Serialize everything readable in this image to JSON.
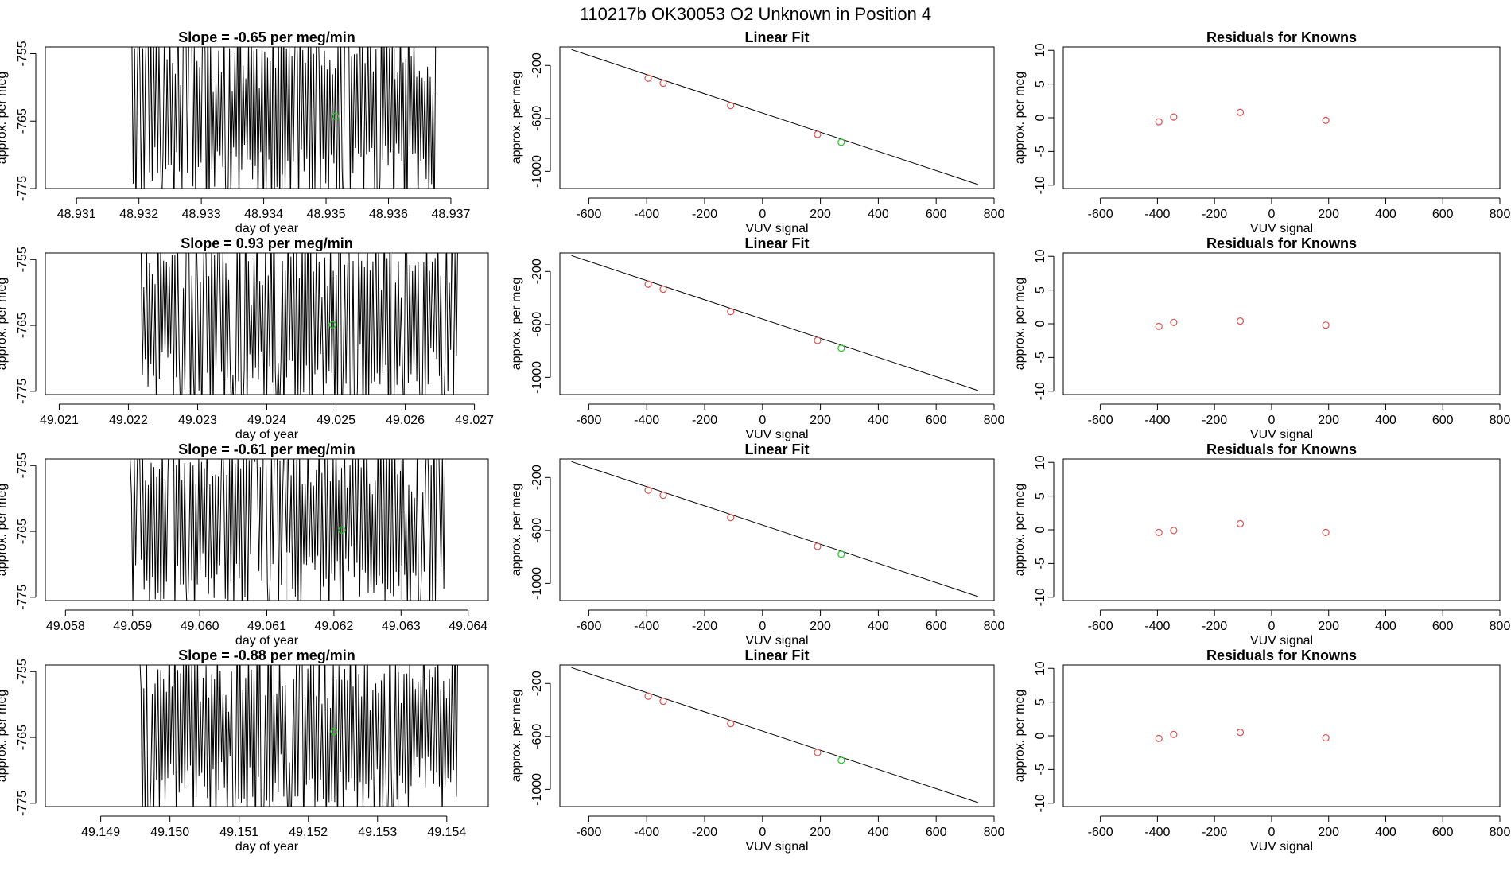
{
  "page_title": "110217b      OK30053    O2 Unknown in Position  4",
  "colors": {
    "series": "#000000",
    "known": "#d9534f",
    "unknown": "#22cc22",
    "marker_line": "#bbbbbb"
  },
  "chart_data": [
    {
      "row": 1,
      "type": "line",
      "title": "Slope =  -0.65  per meg/min",
      "xlabel": "day of year",
      "ylabel": "approx. per meg",
      "xlim": [
        48.9305,
        48.9376
      ],
      "ylim": [
        -775,
        -754
      ],
      "xticks": [
        "48.931",
        "48.932",
        "48.933",
        "48.934",
        "48.935",
        "48.936",
        "48.937"
      ],
      "yticks": [
        "-755",
        "-765",
        "-775"
      ],
      "vlines": [
        48.9343,
        48.9361
      ],
      "unknown_point": {
        "x": 48.93515,
        "y": -764.3
      },
      "x_start": 48.9318,
      "x_end": 48.9368,
      "seed": 11
    },
    {
      "row": 1,
      "type": "scatter",
      "title": "Linear Fit",
      "xlabel": "VUV signal",
      "ylabel": "approx. per meg",
      "xlim": [
        -700,
        800
      ],
      "ylim": [
        -1130,
        -60
      ],
      "xticks": [
        "-600",
        "-400",
        "-200",
        "0",
        "200",
        "400",
        "600",
        "800"
      ],
      "yticks": [
        "-200",
        "-600",
        "-1000"
      ],
      "line": {
        "x": [
          -660,
          745
        ],
        "y": [
          -80,
          -1100
        ]
      },
      "knowns": [
        {
          "x": -395,
          "y": -296
        },
        {
          "x": -343,
          "y": -334
        },
        {
          "x": -110,
          "y": -503
        },
        {
          "x": 190,
          "y": -721
        }
      ],
      "unknown": {
        "x": 272,
        "y": -780
      }
    },
    {
      "row": 1,
      "type": "scatter",
      "title": "Residuals for Knowns",
      "xlabel": "VUV signal",
      "ylabel": "approx. per meg",
      "xlim": [
        -730,
        800
      ],
      "ylim": [
        -10.5,
        10.5
      ],
      "xticks": [
        "-600",
        "-400",
        "-200",
        "0",
        "200",
        "400",
        "600",
        "800"
      ],
      "yticks": [
        "10",
        "5",
        "0",
        "-5",
        "-10"
      ],
      "points": [
        {
          "x": -395,
          "y": -0.6
        },
        {
          "x": -343,
          "y": 0.1
        },
        {
          "x": -110,
          "y": 0.8
        },
        {
          "x": 190,
          "y": -0.4
        }
      ]
    },
    {
      "row": 2,
      "type": "line",
      "title": "Slope =  0.93  per meg/min",
      "xlabel": "day of year",
      "ylabel": "approx. per meg",
      "xlim": [
        49.0208,
        49.0272
      ],
      "ylim": [
        -775.5,
        -754
      ],
      "xticks": [
        "49.021",
        "49.022",
        "49.023",
        "49.024",
        "49.025",
        "49.026",
        "49.027"
      ],
      "yticks": [
        "-755",
        "-765",
        "-775"
      ],
      "vlines": [
        49.0241,
        49.0258
      ],
      "unknown_point": {
        "x": 49.02495,
        "y": -764.9
      },
      "x_start": 49.0221,
      "x_end": 49.0268,
      "seed": 23
    },
    {
      "row": 2,
      "type": "scatter",
      "title": "Linear Fit",
      "xlabel": "VUV signal",
      "ylabel": "approx. per meg",
      "xlim": [
        -700,
        800
      ],
      "ylim": [
        -1130,
        -60
      ],
      "xticks": [
        "-600",
        "-400",
        "-200",
        "0",
        "200",
        "400",
        "600",
        "800"
      ],
      "yticks": [
        "-200",
        "-600",
        "-1000"
      ],
      "line": {
        "x": [
          -660,
          745
        ],
        "y": [
          -80,
          -1100
        ]
      },
      "knowns": [
        {
          "x": -395,
          "y": -296
        },
        {
          "x": -343,
          "y": -334
        },
        {
          "x": -110,
          "y": -503
        },
        {
          "x": 190,
          "y": -721
        }
      ],
      "unknown": {
        "x": 272,
        "y": -780
      }
    },
    {
      "row": 2,
      "type": "scatter",
      "title": "Residuals for Knowns",
      "xlabel": "VUV signal",
      "ylabel": "approx. per meg",
      "xlim": [
        -730,
        800
      ],
      "ylim": [
        -10.5,
        10.5
      ],
      "xticks": [
        "-600",
        "-400",
        "-200",
        "0",
        "200",
        "400",
        "600",
        "800"
      ],
      "yticks": [
        "10",
        "5",
        "0",
        "-5",
        "-10"
      ],
      "points": [
        {
          "x": -395,
          "y": -0.4
        },
        {
          "x": -343,
          "y": 0.2
        },
        {
          "x": -110,
          "y": 0.4
        },
        {
          "x": 190,
          "y": -0.2
        }
      ]
    },
    {
      "row": 3,
      "type": "line",
      "title": "Slope =  -0.61  per meg/min",
      "xlabel": "day of year",
      "ylabel": "approx. per meg",
      "xlim": [
        49.0577,
        49.0643
      ],
      "ylim": [
        -775.5,
        -754
      ],
      "xticks": [
        "49.058",
        "49.059",
        "49.060",
        "49.061",
        "49.062",
        "49.063",
        "49.064"
      ],
      "yticks": [
        "-755",
        "-765",
        "-775"
      ],
      "vlines": [
        49.0613,
        49.063
      ],
      "unknown_point": {
        "x": 49.06212,
        "y": -764.8
      },
      "x_start": 49.0589,
      "x_end": 49.0637,
      "seed": 37
    },
    {
      "row": 3,
      "type": "scatter",
      "title": "Linear Fit",
      "xlabel": "VUV signal",
      "ylabel": "approx. per meg",
      "xlim": [
        -700,
        800
      ],
      "ylim": [
        -1130,
        -60
      ],
      "xticks": [
        "-600",
        "-400",
        "-200",
        "0",
        "200",
        "400",
        "600",
        "800"
      ],
      "yticks": [
        "-200",
        "-600",
        "-1000"
      ],
      "line": {
        "x": [
          -660,
          745
        ],
        "y": [
          -80,
          -1100
        ]
      },
      "knowns": [
        {
          "x": -395,
          "y": -296
        },
        {
          "x": -343,
          "y": -334
        },
        {
          "x": -110,
          "y": -503
        },
        {
          "x": 190,
          "y": -721
        }
      ],
      "unknown": {
        "x": 272,
        "y": -780
      }
    },
    {
      "row": 3,
      "type": "scatter",
      "title": "Residuals for Knowns",
      "xlabel": "VUV signal",
      "ylabel": "approx. per meg",
      "xlim": [
        -730,
        800
      ],
      "ylim": [
        -10.5,
        10.5
      ],
      "xticks": [
        "-600",
        "-400",
        "-200",
        "0",
        "200",
        "400",
        "600",
        "800"
      ],
      "yticks": [
        "10",
        "5",
        "0",
        "-5",
        "-10"
      ],
      "points": [
        {
          "x": -395,
          "y": -0.4
        },
        {
          "x": -343,
          "y": -0.1
        },
        {
          "x": -110,
          "y": 0.9
        },
        {
          "x": 190,
          "y": -0.4
        }
      ]
    },
    {
      "row": 4,
      "type": "line",
      "title": "Slope =  -0.88  per meg/min",
      "xlabel": "day of year",
      "ylabel": "approx. per meg",
      "xlim": [
        49.1482,
        49.1546
      ],
      "ylim": [
        -775.5,
        -754
      ],
      "xticks": [
        "49.149",
        "49.150",
        "49.151",
        "49.152",
        "49.153",
        "49.154"
      ],
      "yticks": [
        "-755",
        "-765",
        "-775"
      ],
      "vlines": [
        49.1515,
        49.1533
      ],
      "unknown_point": {
        "x": 49.15237,
        "y": -764.1
      },
      "x_start": 49.1495,
      "x_end": 49.1542,
      "seed": 53
    },
    {
      "row": 4,
      "type": "scatter",
      "title": "Linear Fit",
      "xlabel": "VUV signal",
      "ylabel": "approx. per meg",
      "xlim": [
        -700,
        800
      ],
      "ylim": [
        -1130,
        -60
      ],
      "xticks": [
        "-600",
        "-400",
        "-200",
        "0",
        "200",
        "400",
        "600",
        "800"
      ],
      "yticks": [
        "-200",
        "-600",
        "-1000"
      ],
      "line": {
        "x": [
          -660,
          745
        ],
        "y": [
          -80,
          -1100
        ]
      },
      "knowns": [
        {
          "x": -395,
          "y": -296
        },
        {
          "x": -343,
          "y": -334
        },
        {
          "x": -110,
          "y": -503
        },
        {
          "x": 190,
          "y": -721
        }
      ],
      "unknown": {
        "x": 272,
        "y": -780
      }
    },
    {
      "row": 4,
      "type": "scatter",
      "title": "Residuals for Knowns",
      "xlabel": "VUV signal",
      "ylabel": "approx. per meg",
      "xlim": [
        -730,
        800
      ],
      "ylim": [
        -10.5,
        10.5
      ],
      "xticks": [
        "-600",
        "-400",
        "-200",
        "0",
        "200",
        "400",
        "600",
        "800"
      ],
      "yticks": [
        "10",
        "5",
        "0",
        "-5",
        "-10"
      ],
      "points": [
        {
          "x": -395,
          "y": -0.4
        },
        {
          "x": -343,
          "y": 0.2
        },
        {
          "x": -110,
          "y": 0.5
        },
        {
          "x": 190,
          "y": -0.3
        }
      ]
    }
  ]
}
